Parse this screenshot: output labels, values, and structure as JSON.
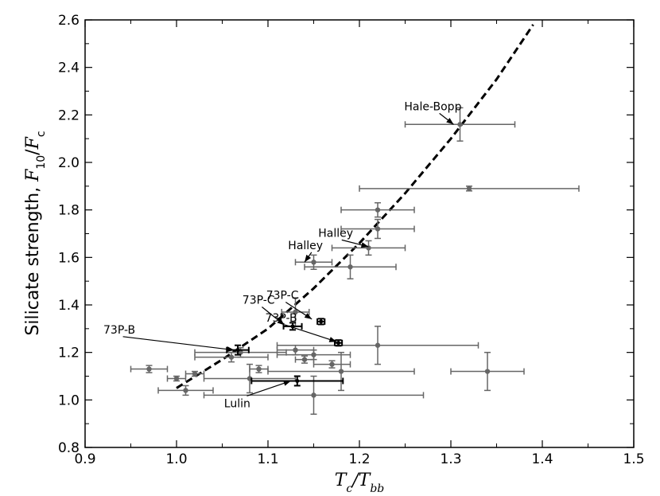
{
  "chart_data": {
    "type": "scatter",
    "title": "",
    "xlabel": "Tc/Tbb",
    "ylabel": "Silicate strength, F10/Fc",
    "xlim": [
      0.9,
      1.5
    ],
    "ylim": [
      0.8,
      2.6
    ],
    "xticks": [
      "0.9",
      "1.0",
      "1.1",
      "1.2",
      "1.3",
      "1.4",
      "1.5"
    ],
    "yticks": [
      "0.8",
      "1.0",
      "1.2",
      "1.4",
      "1.6",
      "1.8",
      "2.0",
      "2.2",
      "2.4",
      "2.6"
    ],
    "grid": false,
    "series": [
      {
        "marker": "circle",
        "color": "#666666",
        "points": [
          {
            "x": 0.97,
            "y": 1.13,
            "xerr": 0.02,
            "yerr": 0.015
          },
          {
            "x": 1.0,
            "y": 1.09,
            "xerr": 0.01,
            "yerr": 0.01
          },
          {
            "x": 1.01,
            "y": 1.04,
            "xerr": 0.03,
            "yerr": 0.02
          },
          {
            "x": 1.02,
            "y": 1.11,
            "xerr": 0.01,
            "yerr": 0.01
          },
          {
            "x": 1.06,
            "y": 1.18,
            "xerr": 0.04,
            "yerr": 0.02
          },
          {
            "x": 1.07,
            "y": 1.2,
            "xerr": 0.05,
            "yerr": 0.02
          },
          {
            "x": 1.09,
            "y": 1.13,
            "xerr": 0.01,
            "yerr": 0.015
          },
          {
            "x": 1.08,
            "y": 1.09,
            "xerr": 0.05,
            "yerr": 0.06
          },
          {
            "x": 1.13,
            "y": 1.21,
            "xerr": 0.02,
            "yerr": 0.02
          },
          {
            "x": 1.14,
            "y": 1.17,
            "xerr": 0.01,
            "yerr": 0.015
          },
          {
            "x": 1.15,
            "y": 1.19,
            "xerr": 0.04,
            "yerr": 0.02
          },
          {
            "x": 1.15,
            "y": 1.02,
            "xerr": 0.12,
            "yerr": 0.08
          },
          {
            "x": 1.17,
            "y": 1.15,
            "xerr": 0.02,
            "yerr": 0.015
          },
          {
            "x": 1.18,
            "y": 1.12,
            "xerr": 0.08,
            "yerr": 0.08
          },
          {
            "x": 1.22,
            "y": 1.23,
            "xerr": 0.11,
            "yerr": 0.08
          },
          {
            "x": 1.34,
            "y": 1.12,
            "xerr": 0.04,
            "yerr": 0.08
          },
          {
            "x": 1.13,
            "y": 1.37,
            "xerr": 0.015,
            "yerr": 0.06
          },
          {
            "x": 1.15,
            "y": 1.58,
            "xerr": 0.02,
            "yerr": 0.03
          },
          {
            "x": 1.19,
            "y": 1.56,
            "xerr": 0.05,
            "yerr": 0.05
          },
          {
            "x": 1.21,
            "y": 1.64,
            "xerr": 0.04,
            "yerr": 0.03
          },
          {
            "x": 1.22,
            "y": 1.72,
            "xerr": 0.04,
            "yerr": 0.04
          },
          {
            "x": 1.22,
            "y": 1.8,
            "xerr": 0.04,
            "yerr": 0.03
          },
          {
            "x": 1.32,
            "y": 1.89,
            "xerr": 0.12,
            "yerr": 0.01
          },
          {
            "x": 1.31,
            "y": 2.16,
            "xerr": 0.06,
            "yerr": 0.07
          }
        ]
      },
      {
        "marker": "errorbar-black",
        "color": "#000000",
        "points": [
          {
            "x": 1.067,
            "y": 1.21,
            "xerr": 0.012,
            "yerr": 0.02
          },
          {
            "x": 1.127,
            "y": 1.31,
            "xerr": 0.01,
            "yerr": 0.015
          },
          {
            "x": 1.158,
            "y": 1.33,
            "xerr": 0.004,
            "yerr": 0.012
          },
          {
            "x": 1.177,
            "y": 1.24,
            "xerr": 0.004,
            "yerr": 0.012
          },
          {
            "x": 1.132,
            "y": 1.08,
            "xerr": 0.05,
            "yerr": 0.02
          }
        ]
      }
    ],
    "fit_line": {
      "style": "dashed",
      "color": "#000000",
      "x": [
        1.0,
        1.05,
        1.1,
        1.15,
        1.2,
        1.25,
        1.3,
        1.35,
        1.39
      ],
      "y": [
        1.05,
        1.17,
        1.3,
        1.47,
        1.66,
        1.87,
        2.1,
        2.35,
        2.58
      ]
    },
    "annotations": [
      {
        "text": "Hale-Bopp",
        "x": 1.249,
        "y": 2.22,
        "ax": 1.303,
        "ay": 2.16
      },
      {
        "text": "Halley",
        "x": 1.122,
        "y": 1.635,
        "ax": 1.14,
        "ay": 1.58
      },
      {
        "text": "Halley",
        "x": 1.155,
        "y": 1.687,
        "ax": 1.21,
        "ay": 1.645
      },
      {
        "text": "73P-C",
        "x": 1.098,
        "y": 1.425,
        "ax": 1.148,
        "ay": 1.34
      },
      {
        "text": "73P-C",
        "x": 1.072,
        "y": 1.405,
        "ax": 1.118,
        "ay": 1.315
      },
      {
        "text": "73P-B",
        "x": 1.097,
        "y": 1.33,
        "ax": 1.175,
        "ay": 1.245
      },
      {
        "text": "73P-B",
        "x": 0.92,
        "y": 1.28,
        "ax": 1.063,
        "ay": 1.21
      },
      {
        "text": "Lulin",
        "x": 1.052,
        "y": 0.97,
        "ax": 1.125,
        "ay": 1.08
      }
    ]
  }
}
